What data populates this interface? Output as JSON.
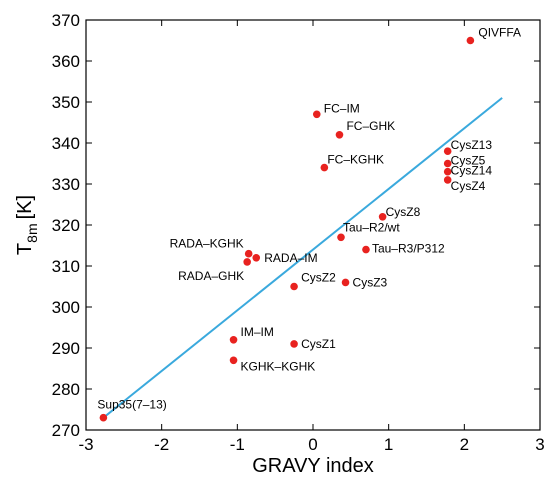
{
  "chart_data": {
    "type": "scatter",
    "xlabel": "GRAVY index",
    "ylabel_main": "T",
    "ylabel_sub": "8m",
    "ylabel_unit": "[K]",
    "xlim": [
      -3,
      3
    ],
    "ylim": [
      270,
      370
    ],
    "xticks": [
      "-3",
      "-2",
      "-1",
      "0",
      "1",
      "2",
      "3"
    ],
    "yticks": [
      "270",
      "280",
      "290",
      "300",
      "310",
      "320",
      "330",
      "340",
      "350",
      "360",
      "370"
    ],
    "grid": false,
    "point_color": "#e8221f",
    "line_color": "#3aa9dd",
    "points": [
      {
        "label": "QIVFFA",
        "x": 2.08,
        "y": 365
      },
      {
        "label": "FC–IM",
        "x": 0.05,
        "y": 347
      },
      {
        "label": "FC–GHK",
        "x": 0.35,
        "y": 342
      },
      {
        "label": "CysZ13",
        "x": 1.78,
        "y": 338
      },
      {
        "label": "CysZ5",
        "x": 1.78,
        "y": 335
      },
      {
        "label": "CysZ14",
        "x": 1.78,
        "y": 333
      },
      {
        "label": "CysZ4",
        "x": 1.78,
        "y": 331
      },
      {
        "label": "FC–KGHK",
        "x": 0.15,
        "y": 334
      },
      {
        "label": "CysZ8",
        "x": 0.92,
        "y": 322
      },
      {
        "label": "Tau–R2/wt",
        "x": 0.37,
        "y": 317
      },
      {
        "label": "Tau–R3/P312",
        "x": 0.7,
        "y": 314
      },
      {
        "label": "RADA–KGHK",
        "x": -0.85,
        "y": 313
      },
      {
        "label": "RADA–IM",
        "x": -0.75,
        "y": 312
      },
      {
        "label": "RADA–GHK",
        "x": -0.87,
        "y": 311
      },
      {
        "label": "CysZ2",
        "x": -0.25,
        "y": 305
      },
      {
        "label": "CysZ3",
        "x": 0.43,
        "y": 306
      },
      {
        "label": "IM–IM",
        "x": -1.05,
        "y": 292
      },
      {
        "label": "CysZ1",
        "x": -0.25,
        "y": 291
      },
      {
        "label": "KGHK–KGHK",
        "x": -1.05,
        "y": 287
      },
      {
        "label": "Sup35(7–13)",
        "x": -2.77,
        "y": 273
      }
    ],
    "fit_line": {
      "x": [
        -2.77,
        2.5
      ],
      "y": [
        273,
        351
      ]
    }
  }
}
